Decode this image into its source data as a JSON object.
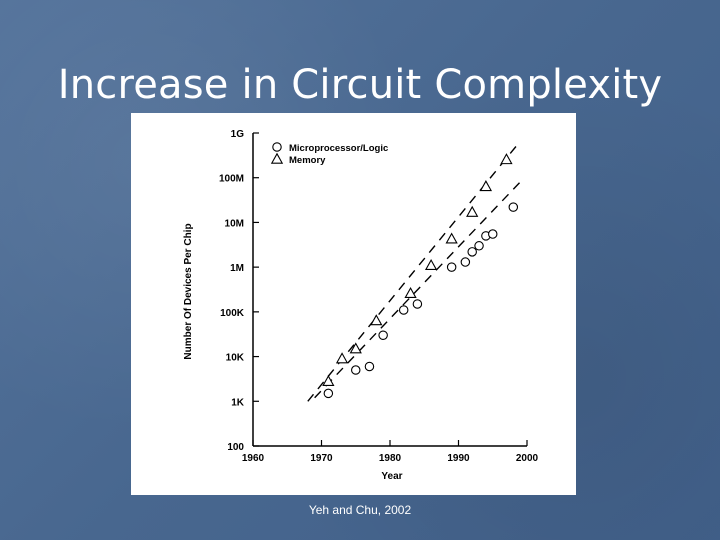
{
  "slide": {
    "title": "Increase in Circuit Complexity",
    "caption": "Yeh and Chu, 2002"
  },
  "chart_data": {
    "type": "scatter",
    "title": "",
    "xlabel": "Year",
    "ylabel": "Number Of Devices Per Chip",
    "x_scale": "linear",
    "y_scale": "log",
    "xlim": [
      1960,
      2000
    ],
    "ylim": [
      100,
      1000000000
    ],
    "x_ticks": [
      1960,
      1970,
      1980,
      1990,
      2000
    ],
    "x_tick_labels": [
      "1960",
      "1970",
      "1980",
      "1990",
      "2000"
    ],
    "y_ticks": [
      100,
      1000,
      10000,
      100000,
      1000000,
      10000000,
      100000000,
      1000000000
    ],
    "y_tick_labels": [
      "100",
      "1K",
      "10K",
      "100K",
      "1M",
      "10M",
      "100M",
      "1G"
    ],
    "grid": false,
    "legend_position": "top-left",
    "series": [
      {
        "name": "Microprocessor/Logic",
        "marker": "circle",
        "points": [
          [
            1971,
            1500
          ],
          [
            1975,
            5000
          ],
          [
            1977,
            6000
          ],
          [
            1979,
            30000
          ],
          [
            1982,
            110000
          ],
          [
            1984,
            150000
          ],
          [
            1989,
            1000000
          ],
          [
            1991,
            1300000
          ],
          [
            1992,
            2200000
          ],
          [
            1993,
            3000000
          ],
          [
            1994,
            5000000
          ],
          [
            1995,
            5500000
          ],
          [
            1998,
            22000000
          ]
        ],
        "trend": [
          [
            1969,
            1200
          ],
          [
            1999,
            80000000
          ]
        ]
      },
      {
        "name": "Memory",
        "marker": "triangle",
        "points": [
          [
            1971,
            2800
          ],
          [
            1973,
            9000
          ],
          [
            1975,
            15000
          ],
          [
            1978,
            64000
          ],
          [
            1983,
            260000
          ],
          [
            1986,
            1100000
          ],
          [
            1989,
            4300000
          ],
          [
            1992,
            17000000
          ],
          [
            1994,
            64000000
          ],
          [
            1997,
            256000000
          ]
        ],
        "trend": [
          [
            1968,
            1000
          ],
          [
            1999,
            650000000
          ]
        ]
      }
    ]
  }
}
